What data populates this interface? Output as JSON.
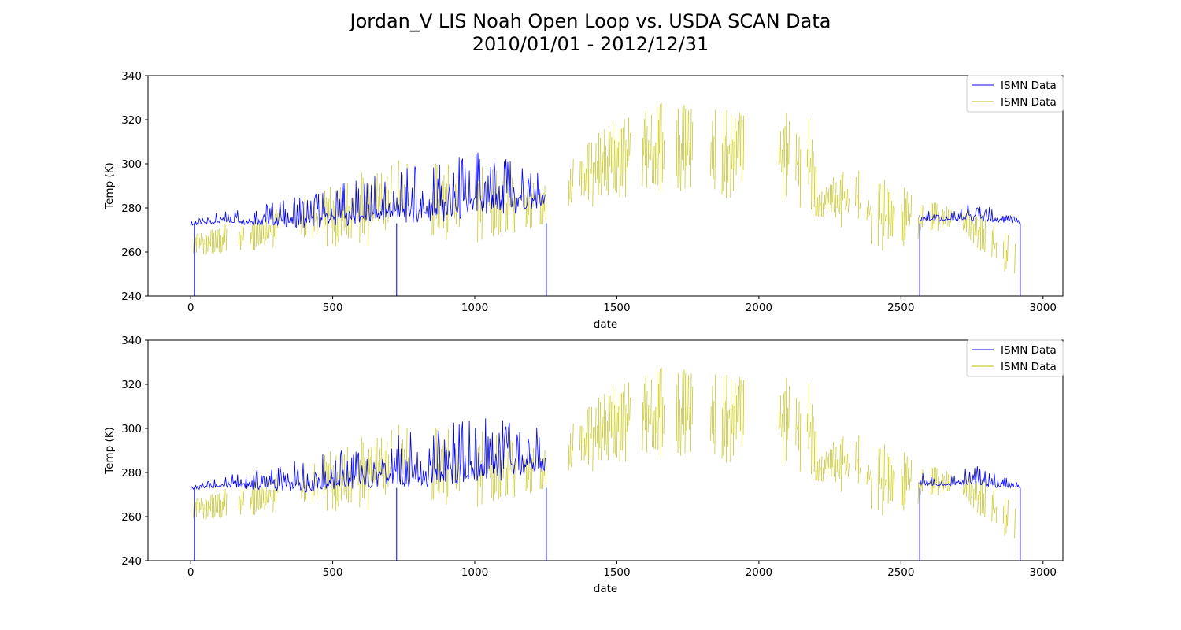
{
  "figure": {
    "title_line1": "Jordan_V LIS Noah Open Loop vs. USDA SCAN Data",
    "title_line2": "2010/01/01 - 2012/12/31"
  },
  "chart_data": [
    {
      "type": "line",
      "xlabel": "date",
      "ylabel": "Temp (K)",
      "xlim": [
        -150,
        3070
      ],
      "ylim": [
        240,
        340
      ],
      "xticks": [
        0,
        500,
        1000,
        1500,
        2000,
        2500,
        3000
      ],
      "yticks": [
        240,
        260,
        280,
        300,
        320,
        340
      ],
      "grid": false,
      "legend_position": "upper-right",
      "series": [
        {
          "name": "ISMN Data",
          "color": "#0000ff",
          "segments": [
            {
              "x_start": 0,
              "x_end": 1250,
              "baseline": 273,
              "envelope_x": [
                0,
                100,
                250,
                400,
                550,
                700,
                850,
                1000,
                1100,
                1250
              ],
              "envelope_min": [
                272,
                273,
                272,
                271,
                272,
                273,
                273,
                275,
                276,
                280
              ],
              "envelope_max": [
                274,
                278,
                282,
                286,
                292,
                296,
                302,
                306,
                304,
                300
              ]
            },
            {
              "x_start": 2565,
              "x_end": 2920,
              "baseline": 274,
              "envelope_x": [
                2565,
                2650,
                2750,
                2850,
                2920
              ],
              "envelope_min": [
                274,
                274,
                274,
                273,
                273
              ],
              "envelope_max": [
                282,
                276,
                284,
                279,
                275
              ]
            }
          ],
          "drop_lines_x": [
            14,
            725,
            1252,
            2566,
            2920
          ]
        },
        {
          "name": "ISMN Data",
          "color": "#bfbf00",
          "segments": [
            {
              "x_start": 10,
              "x_end": 1250,
              "envelope_x": [
                10,
                200,
                400,
                600,
                800,
                1000,
                1200,
                1250
              ],
              "envelope_min": [
                258,
                260,
                262,
                262,
                264,
                264,
                270,
                272
              ],
              "envelope_max": [
                268,
                276,
                285,
                298,
                305,
                300,
                292,
                290
              ]
            },
            {
              "x_start": 1250,
              "x_end": 2200,
              "envelope_x": [
                1250,
                1400,
                1500,
                1600,
                1700,
                1800,
                1900,
                2000,
                2100,
                2200
              ],
              "envelope_min": [
                276,
                280,
                284,
                286,
                287,
                286,
                283,
                280,
                278,
                276
              ],
              "envelope_max": [
                292,
                310,
                322,
                328,
                330,
                328,
                331,
                322,
                326,
                320
              ]
            },
            {
              "x_start": 2200,
              "x_end": 2900,
              "envelope_x": [
                2200,
                2300,
                2400,
                2500,
                2600,
                2700,
                2800,
                2900
              ],
              "envelope_min": [
                276,
                270,
                258,
                262,
                268,
                272,
                256,
                248
              ],
              "envelope_max": [
                285,
                300,
                296,
                290,
                283,
                280,
                278,
                266
              ]
            }
          ]
        }
      ]
    },
    {
      "type": "line",
      "xlabel": "date",
      "ylabel": "Temp (K)",
      "xlim": [
        -150,
        3070
      ],
      "ylim": [
        240,
        340
      ],
      "xticks": [
        0,
        500,
        1000,
        1500,
        2000,
        2500,
        3000
      ],
      "yticks": [
        240,
        260,
        280,
        300,
        320,
        340
      ],
      "grid": false,
      "legend_position": "upper-right",
      "series": [
        {
          "name": "ISMN Data",
          "color": "#0000ff",
          "segments": [
            {
              "x_start": 0,
              "x_end": 1250,
              "baseline": 273,
              "envelope_x": [
                0,
                100,
                250,
                400,
                550,
                700,
                850,
                1000,
                1100,
                1250
              ],
              "envelope_min": [
                272,
                273,
                272,
                271,
                272,
                273,
                273,
                275,
                276,
                280
              ],
              "envelope_max": [
                274,
                278,
                282,
                286,
                292,
                296,
                302,
                306,
                304,
                300
              ]
            },
            {
              "x_start": 2565,
              "x_end": 2920,
              "baseline": 274,
              "envelope_x": [
                2565,
                2650,
                2750,
                2850,
                2920
              ],
              "envelope_min": [
                274,
                274,
                274,
                273,
                273
              ],
              "envelope_max": [
                282,
                276,
                284,
                279,
                275
              ]
            }
          ],
          "drop_lines_x": [
            14,
            725,
            1252,
            2566,
            2920
          ]
        },
        {
          "name": "ISMN Data",
          "color": "#bfbf00",
          "segments": [
            {
              "x_start": 10,
              "x_end": 1250,
              "envelope_x": [
                10,
                200,
                400,
                600,
                800,
                1000,
                1200,
                1250
              ],
              "envelope_min": [
                258,
                260,
                262,
                262,
                264,
                264,
                270,
                272
              ],
              "envelope_max": [
                268,
                276,
                285,
                298,
                305,
                300,
                292,
                290
              ]
            },
            {
              "x_start": 1250,
              "x_end": 2200,
              "envelope_x": [
                1250,
                1400,
                1500,
                1600,
                1700,
                1800,
                1900,
                2000,
                2100,
                2200
              ],
              "envelope_min": [
                276,
                280,
                284,
                286,
                287,
                286,
                283,
                280,
                278,
                276
              ],
              "envelope_max": [
                292,
                310,
                322,
                328,
                330,
                328,
                331,
                322,
                326,
                320
              ]
            },
            {
              "x_start": 2200,
              "x_end": 2900,
              "envelope_x": [
                2200,
                2300,
                2400,
                2500,
                2600,
                2700,
                2800,
                2900
              ],
              "envelope_min": [
                276,
                270,
                258,
                262,
                268,
                272,
                256,
                248
              ],
              "envelope_max": [
                285,
                300,
                296,
                290,
                283,
                280,
                278,
                266
              ]
            }
          ]
        }
      ]
    }
  ]
}
